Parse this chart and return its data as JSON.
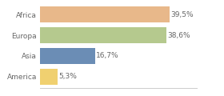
{
  "categories": [
    "Africa",
    "Europa",
    "Asia",
    "America"
  ],
  "values": [
    39.5,
    38.6,
    16.7,
    5.3
  ],
  "labels": [
    "39,5%",
    "38,6%",
    "16,7%",
    "5,3%"
  ],
  "bar_colors": [
    "#e8b88a",
    "#b5c98e",
    "#6b8db5",
    "#f0d070"
  ],
  "background_color": "#ffffff",
  "xlim": [
    0,
    48
  ],
  "bar_height": 0.75,
  "label_fontsize": 6.5,
  "category_fontsize": 6.5,
  "text_color": "#666666",
  "spine_color": "#cccccc"
}
